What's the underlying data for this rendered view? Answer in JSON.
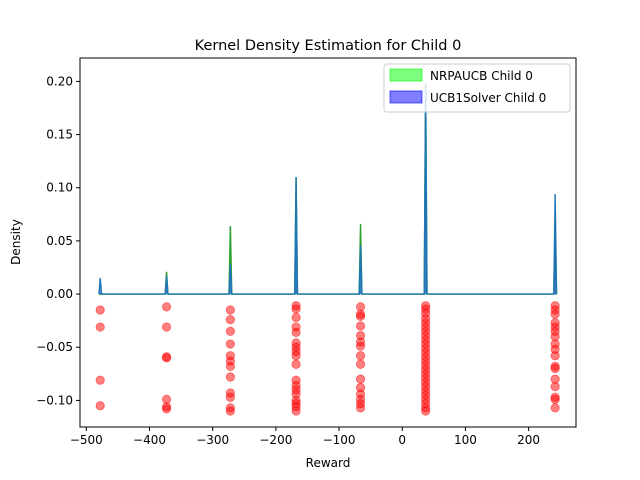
{
  "chart_data": {
    "type": "area",
    "title": "Kernel Density Estimation for Child 0",
    "xlabel": "Reward",
    "ylabel": "Density",
    "xlim": [
      -510,
      275
    ],
    "ylim": [
      -0.125,
      0.222
    ],
    "xticks": [
      -500,
      -400,
      -300,
      -200,
      -100,
      0,
      100,
      200
    ],
    "xtick_labels": [
      "−500",
      "−400",
      "−300",
      "−200",
      "−100",
      "0",
      "100",
      "200"
    ],
    "yticks": [
      -0.1,
      -0.05,
      0.0,
      0.05,
      0.1,
      0.15,
      0.2
    ],
    "ytick_labels": [
      "−0.10",
      "−0.05",
      "0.00",
      "0.05",
      "0.10",
      "0.15",
      "0.20"
    ],
    "grid": false,
    "legend_position": "top-right",
    "x_range": [
      -480,
      245
    ],
    "series": [
      {
        "name": "NRPAUCB Child 0",
        "color": "#00ff00",
        "peaks": [
          {
            "x": -373,
            "height": 0.021
          },
          {
            "x": -272,
            "height": 0.064
          },
          {
            "x": -168,
            "height": 0.11
          },
          {
            "x": -66,
            "height": 0.066
          },
          {
            "x": 37,
            "height": 0.198
          },
          {
            "x": 242,
            "height": 0.062
          }
        ]
      },
      {
        "name": "UCB1Solver Child 0",
        "color": "#0000ff",
        "peaks": [
          {
            "x": -478,
            "height": 0.015
          },
          {
            "x": -373,
            "height": 0.017
          },
          {
            "x": -272,
            "height": 0.028
          },
          {
            "x": -168,
            "height": 0.11
          },
          {
            "x": -66,
            "height": 0.046
          },
          {
            "x": 37,
            "height": 0.198
          },
          {
            "x": 242,
            "height": 0.094
          }
        ]
      }
    ],
    "scatter_color": "#ff0000",
    "scatter_points": [
      {
        "x": -478,
        "y": -0.015
      },
      {
        "x": -478,
        "y": -0.031
      },
      {
        "x": -478,
        "y": -0.081
      },
      {
        "x": -478,
        "y": -0.105
      },
      {
        "x": -373,
        "y": -0.012
      },
      {
        "x": -373,
        "y": -0.031
      },
      {
        "x": -373,
        "y": -0.059
      },
      {
        "x": -373,
        "y": -0.06
      },
      {
        "x": -373,
        "y": -0.099
      },
      {
        "x": -373,
        "y": -0.106
      },
      {
        "x": -373,
        "y": -0.108
      },
      {
        "x": -272,
        "y": -0.015
      },
      {
        "x": -272,
        "y": -0.024
      },
      {
        "x": -272,
        "y": -0.035
      },
      {
        "x": -272,
        "y": -0.047
      },
      {
        "x": -272,
        "y": -0.058
      },
      {
        "x": -272,
        "y": -0.063
      },
      {
        "x": -272,
        "y": -0.068
      },
      {
        "x": -272,
        "y": -0.078
      },
      {
        "x": -272,
        "y": -0.093
      },
      {
        "x": -272,
        "y": -0.097
      },
      {
        "x": -272,
        "y": -0.107
      },
      {
        "x": -272,
        "y": -0.11
      },
      {
        "x": -168,
        "y": -0.011
      },
      {
        "x": -168,
        "y": -0.014
      },
      {
        "x": -168,
        "y": -0.022
      },
      {
        "x": -168,
        "y": -0.031
      },
      {
        "x": -168,
        "y": -0.036
      },
      {
        "x": -168,
        "y": -0.046
      },
      {
        "x": -168,
        "y": -0.05
      },
      {
        "x": -168,
        "y": -0.054
      },
      {
        "x": -168,
        "y": -0.058
      },
      {
        "x": -168,
        "y": -0.066
      },
      {
        "x": -168,
        "y": -0.081
      },
      {
        "x": -168,
        "y": -0.086
      },
      {
        "x": -168,
        "y": -0.09
      },
      {
        "x": -168,
        "y": -0.094
      },
      {
        "x": -168,
        "y": -0.1
      },
      {
        "x": -168,
        "y": -0.103
      },
      {
        "x": -168,
        "y": -0.106
      },
      {
        "x": -168,
        "y": -0.11
      },
      {
        "x": -66,
        "y": -0.012
      },
      {
        "x": -66,
        "y": -0.019
      },
      {
        "x": -66,
        "y": -0.021
      },
      {
        "x": -66,
        "y": -0.03
      },
      {
        "x": -66,
        "y": -0.039
      },
      {
        "x": -66,
        "y": -0.045
      },
      {
        "x": -66,
        "y": -0.049
      },
      {
        "x": -66,
        "y": -0.058
      },
      {
        "x": -66,
        "y": -0.066
      },
      {
        "x": -66,
        "y": -0.08
      },
      {
        "x": -66,
        "y": -0.088
      },
      {
        "x": -66,
        "y": -0.094
      },
      {
        "x": -66,
        "y": -0.099
      },
      {
        "x": -66,
        "y": -0.103
      },
      {
        "x": -66,
        "y": -0.107
      },
      {
        "x": 37,
        "y": -0.011
      },
      {
        "x": 37,
        "y": -0.014
      },
      {
        "x": 37,
        "y": -0.018
      },
      {
        "x": 37,
        "y": -0.023
      },
      {
        "x": 37,
        "y": -0.027
      },
      {
        "x": 37,
        "y": -0.031
      },
      {
        "x": 37,
        "y": -0.035
      },
      {
        "x": 37,
        "y": -0.039
      },
      {
        "x": 37,
        "y": -0.043
      },
      {
        "x": 37,
        "y": -0.047
      },
      {
        "x": 37,
        "y": -0.051
      },
      {
        "x": 37,
        "y": -0.055
      },
      {
        "x": 37,
        "y": -0.059
      },
      {
        "x": 37,
        "y": -0.063
      },
      {
        "x": 37,
        "y": -0.067
      },
      {
        "x": 37,
        "y": -0.071
      },
      {
        "x": 37,
        "y": -0.075
      },
      {
        "x": 37,
        "y": -0.079
      },
      {
        "x": 37,
        "y": -0.083
      },
      {
        "x": 37,
        "y": -0.087
      },
      {
        "x": 37,
        "y": -0.091
      },
      {
        "x": 37,
        "y": -0.095
      },
      {
        "x": 37,
        "y": -0.099
      },
      {
        "x": 37,
        "y": -0.103
      },
      {
        "x": 37,
        "y": -0.107
      },
      {
        "x": 37,
        "y": -0.11
      },
      {
        "x": 242,
        "y": -0.011
      },
      {
        "x": 242,
        "y": -0.015
      },
      {
        "x": 242,
        "y": -0.019
      },
      {
        "x": 242,
        "y": -0.027
      },
      {
        "x": 242,
        "y": -0.031
      },
      {
        "x": 242,
        "y": -0.035
      },
      {
        "x": 242,
        "y": -0.04
      },
      {
        "x": 242,
        "y": -0.047
      },
      {
        "x": 242,
        "y": -0.052
      },
      {
        "x": 242,
        "y": -0.058
      },
      {
        "x": 242,
        "y": -0.068
      },
      {
        "x": 242,
        "y": -0.07
      },
      {
        "x": 242,
        "y": -0.08
      },
      {
        "x": 242,
        "y": -0.087
      },
      {
        "x": 242,
        "y": -0.097
      },
      {
        "x": 242,
        "y": -0.099
      },
      {
        "x": 242,
        "y": -0.107
      }
    ]
  }
}
